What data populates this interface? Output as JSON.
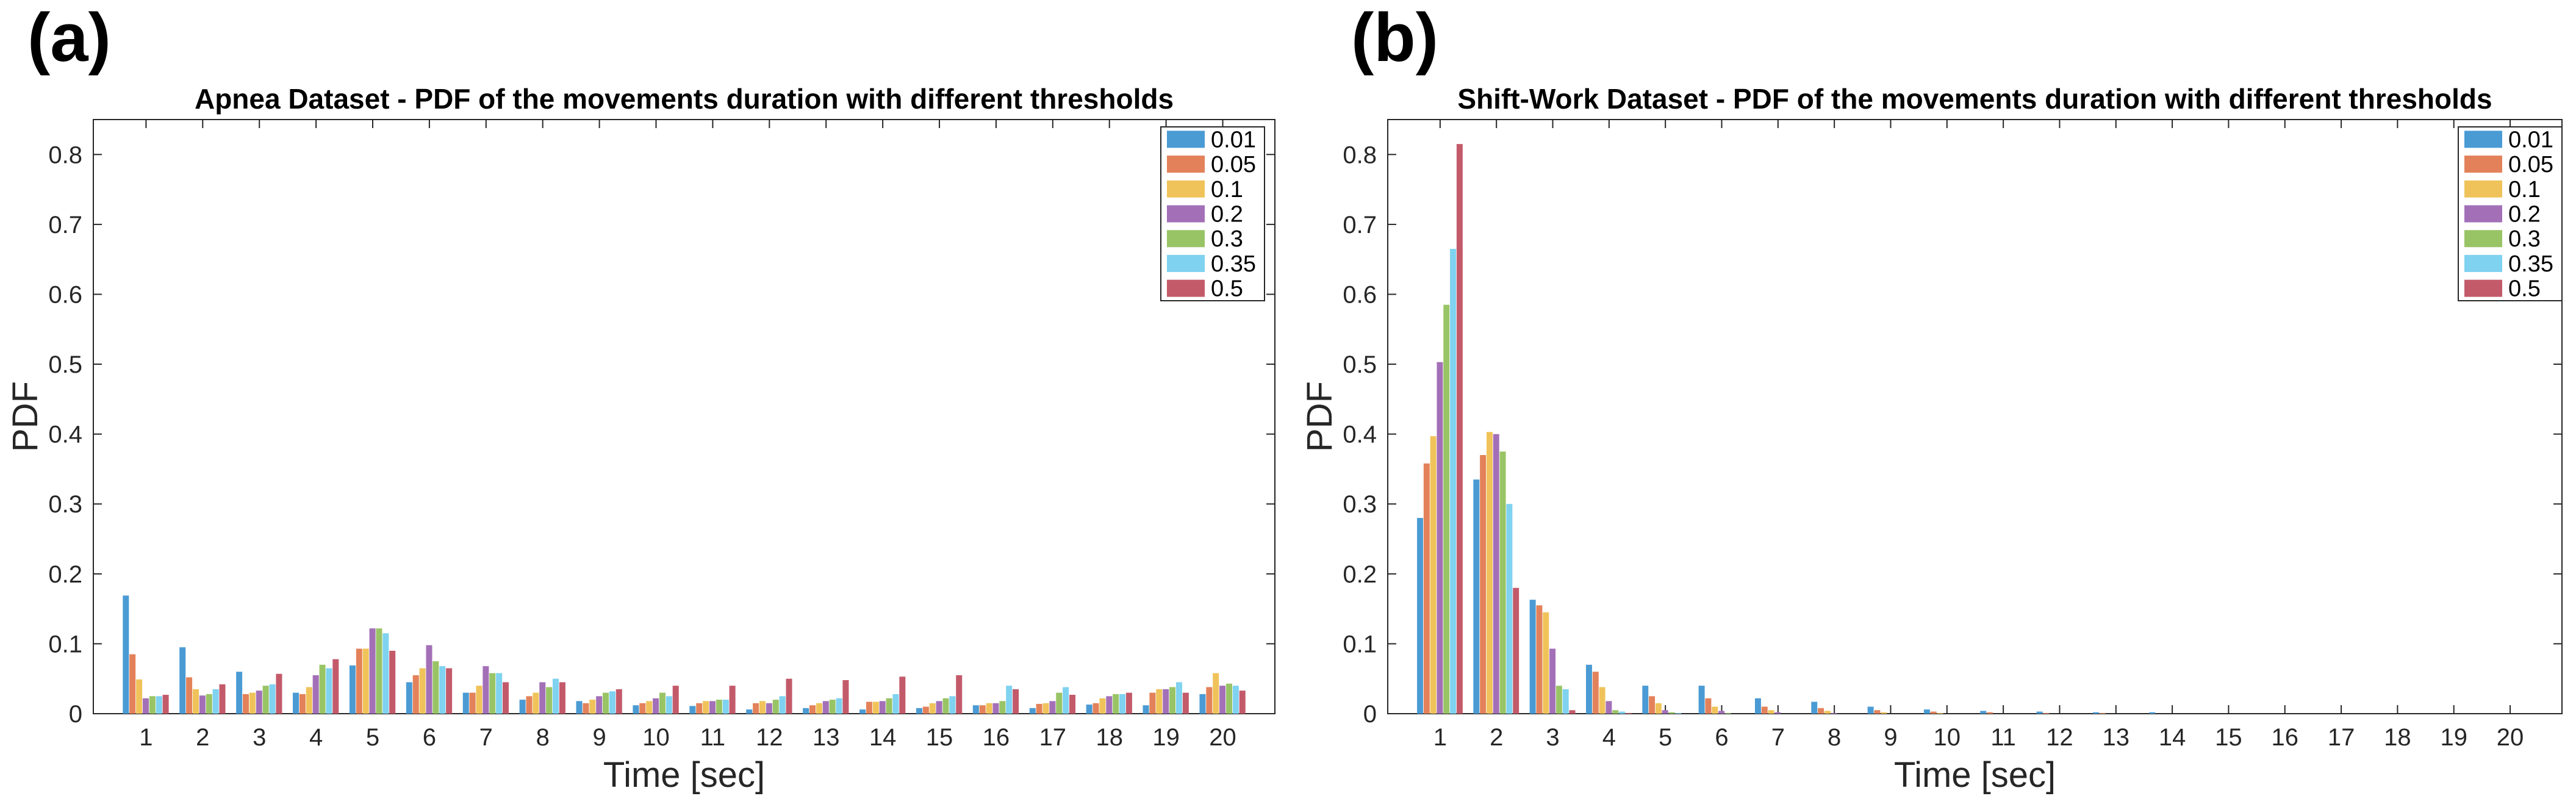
{
  "colors": [
    "#4a9bd4",
    "#e3825a",
    "#f0c35a",
    "#a370b8",
    "#99c466",
    "#7fd2f0",
    "#c35a6a"
  ],
  "chart_data": [
    {
      "panel_label": "(a)",
      "type": "bar",
      "title": "Apnea Dataset - PDF of the movements duration with different thresholds",
      "xlabel": "Time [sec]",
      "ylabel": "PDF",
      "ylim": [
        0,
        0.85
      ],
      "yticks": [
        "0",
        "0.1",
        "0.2",
        "0.3",
        "0.4",
        "0.5",
        "0.6",
        "0.7",
        "0.8"
      ],
      "categories": [
        "1",
        "2",
        "3",
        "4",
        "5",
        "6",
        "7",
        "8",
        "9",
        "10",
        "11",
        "12",
        "13",
        "14",
        "15",
        "16",
        "17",
        "18",
        "19",
        "20"
      ],
      "legend_position": "top-right",
      "series": [
        {
          "name": "0.01",
          "values": [
            0.169,
            0.095,
            0.06,
            0.03,
            0.069,
            0.045,
            0.03,
            0.02,
            0.018,
            0.012,
            0.011,
            0.006,
            0.008,
            0.006,
            0.008,
            0.012,
            0.008,
            0.013,
            0.012,
            0.028
          ]
        },
        {
          "name": "0.05",
          "values": [
            0.085,
            0.052,
            0.028,
            0.028,
            0.093,
            0.055,
            0.03,
            0.025,
            0.015,
            0.015,
            0.015,
            0.015,
            0.012,
            0.017,
            0.01,
            0.012,
            0.014,
            0.015,
            0.03,
            0.038
          ]
        },
        {
          "name": "0.1",
          "values": [
            0.049,
            0.035,
            0.03,
            0.038,
            0.093,
            0.065,
            0.04,
            0.03,
            0.02,
            0.018,
            0.018,
            0.018,
            0.015,
            0.017,
            0.015,
            0.015,
            0.015,
            0.022,
            0.035,
            0.058
          ]
        },
        {
          "name": "0.2",
          "values": [
            0.022,
            0.026,
            0.033,
            0.055,
            0.122,
            0.098,
            0.068,
            0.045,
            0.025,
            0.022,
            0.018,
            0.015,
            0.018,
            0.018,
            0.018,
            0.015,
            0.018,
            0.025,
            0.035,
            0.04
          ]
        },
        {
          "name": "0.3",
          "values": [
            0.025,
            0.028,
            0.04,
            0.07,
            0.122,
            0.075,
            0.058,
            0.038,
            0.03,
            0.03,
            0.02,
            0.02,
            0.02,
            0.022,
            0.022,
            0.018,
            0.03,
            0.028,
            0.038,
            0.043
          ]
        },
        {
          "name": "0.35",
          "values": [
            0.025,
            0.035,
            0.042,
            0.065,
            0.115,
            0.068,
            0.058,
            0.05,
            0.032,
            0.025,
            0.02,
            0.025,
            0.022,
            0.028,
            0.025,
            0.04,
            0.038,
            0.028,
            0.045,
            0.04
          ]
        },
        {
          "name": "0.5",
          "values": [
            0.027,
            0.042,
            0.057,
            0.078,
            0.09,
            0.065,
            0.045,
            0.045,
            0.035,
            0.04,
            0.04,
            0.05,
            0.048,
            0.053,
            0.055,
            0.035,
            0.027,
            0.03,
            0.03,
            0.033
          ]
        }
      ]
    },
    {
      "panel_label": "(b)",
      "type": "bar",
      "title": "Shift-Work Dataset - PDF of the movements duration with different thresholds",
      "xlabel": "Time [sec]",
      "ylabel": "PDF",
      "ylim": [
        0,
        0.85
      ],
      "yticks": [
        "0",
        "0.1",
        "0.2",
        "0.3",
        "0.4",
        "0.5",
        "0.6",
        "0.7",
        "0.8"
      ],
      "categories": [
        "1",
        "2",
        "3",
        "4",
        "5",
        "6",
        "7",
        "8",
        "9",
        "10",
        "11",
        "12",
        "13",
        "14",
        "15",
        "16",
        "17",
        "18",
        "19",
        "20"
      ],
      "legend_position": "top-right",
      "series": [
        {
          "name": "0.01",
          "values": [
            0.28,
            0.335,
            0.163,
            0.07,
            0.04,
            0.04,
            0.022,
            0.017,
            0.01,
            0.006,
            0.004,
            0.003,
            0.002,
            0.002,
            0,
            0,
            0,
            0,
            0,
            0
          ]
        },
        {
          "name": "0.05",
          "values": [
            0.358,
            0.37,
            0.155,
            0.06,
            0.025,
            0.022,
            0.01,
            0.008,
            0.005,
            0.003,
            0.002,
            0.001,
            0.001,
            0,
            0,
            0,
            0,
            0,
            0,
            0
          ]
        },
        {
          "name": "0.1",
          "values": [
            0.397,
            0.403,
            0.145,
            0.038,
            0.015,
            0.01,
            0.005,
            0.004,
            0.002,
            0.001,
            0,
            0,
            0,
            0,
            0,
            0,
            0,
            0,
            0,
            0
          ]
        },
        {
          "name": "0.2",
          "values": [
            0.503,
            0.4,
            0.093,
            0.018,
            0.005,
            0.004,
            0.002,
            0.001,
            0,
            0,
            0,
            0,
            0,
            0,
            0,
            0,
            0,
            0,
            0,
            0
          ]
        },
        {
          "name": "0.3",
          "values": [
            0.585,
            0.375,
            0.04,
            0.005,
            0.002,
            0.001,
            0,
            0,
            0,
            0,
            0,
            0,
            0,
            0,
            0,
            0,
            0,
            0,
            0,
            0
          ]
        },
        {
          "name": "0.35",
          "values": [
            0.665,
            0.3,
            0.035,
            0.003,
            0.001,
            0,
            0,
            0,
            0,
            0,
            0,
            0,
            0,
            0,
            0,
            0,
            0,
            0,
            0,
            0
          ]
        },
        {
          "name": "0.5",
          "values": [
            0.815,
            0.18,
            0.005,
            0.001,
            0,
            0,
            0,
            0,
            0,
            0,
            0,
            0,
            0,
            0,
            0,
            0,
            0,
            0,
            0,
            0
          ]
        }
      ]
    }
  ]
}
